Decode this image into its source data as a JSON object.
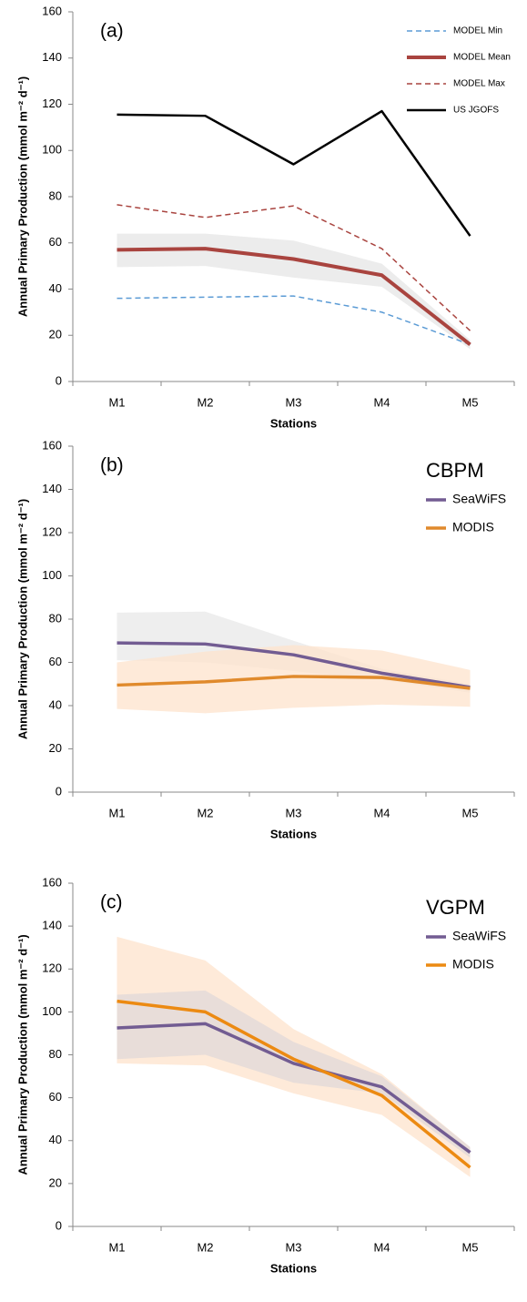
{
  "chart_data": [
    {
      "type": "line",
      "panel_label": "(a)",
      "y_label": "Annual Primary Production (mmol m⁻² d⁻¹)",
      "x_label": "Stations",
      "categories": [
        "M1",
        "M2",
        "M3",
        "M4",
        "M5"
      ],
      "ylim": [
        0,
        160
      ],
      "yticks": [
        0,
        20,
        40,
        60,
        80,
        100,
        120,
        140,
        160
      ],
      "bands": [
        {
          "color": "#e6e6e6",
          "upper": [
            64,
            64,
            61,
            51,
            18
          ],
          "lower": [
            49.5,
            50,
            45,
            41,
            14
          ]
        }
      ],
      "series": [
        {
          "name": "MODEL Min",
          "color": "#5b9bd5",
          "dashed": true,
          "linewidth": 1.5,
          "values": [
            36,
            36.5,
            37,
            30,
            16
          ]
        },
        {
          "name": "MODEL Mean",
          "color": "#a9443f",
          "dashed": false,
          "linewidth": 4,
          "values": [
            57,
            57.5,
            53,
            46,
            16
          ]
        },
        {
          "name": "MODEL Max",
          "color": "#a9443f",
          "dashed": true,
          "linewidth": 1.5,
          "values": [
            76.5,
            71,
            76,
            57.5,
            22
          ]
        },
        {
          "name": "US JGOFS",
          "color": "#000000",
          "dashed": false,
          "linewidth": 2.5,
          "values": [
            115.5,
            115,
            94,
            117,
            63
          ]
        }
      ]
    },
    {
      "type": "line",
      "panel_label": "(b)",
      "model": "CBPM",
      "y_label": "Annual Primary Production (mmol m⁻² d⁻¹)",
      "x_label": "Stations",
      "categories": [
        "M1",
        "M2",
        "M3",
        "M4",
        "M5"
      ],
      "ylim": [
        0,
        160
      ],
      "yticks": [
        0,
        20,
        40,
        60,
        80,
        100,
        120,
        140,
        160
      ],
      "bands": [
        {
          "color": "#e8e8e8",
          "upper": [
            83,
            83.5,
            70,
            57,
            50
          ],
          "lower": [
            61,
            60,
            56,
            52,
            46
          ]
        },
        {
          "color": "#fde3cc",
          "upper": [
            60,
            65,
            68,
            65.5,
            56.5
          ],
          "lower": [
            38.5,
            36.5,
            39,
            40.5,
            39.5
          ]
        }
      ],
      "series": [
        {
          "name": "SeaWiFS",
          "color": "#725c92",
          "dashed": false,
          "linewidth": 3.5,
          "values": [
            69,
            68.5,
            63.5,
            55,
            48.5
          ]
        },
        {
          "name": "MODIS",
          "color": "#e08a2c",
          "dashed": false,
          "linewidth": 3.5,
          "values": [
            49.5,
            51,
            53.5,
            53,
            48
          ]
        }
      ]
    },
    {
      "type": "line",
      "panel_label": "(c)",
      "model": "VGPM",
      "y_label": "Annual Primary Production (mmol m⁻² d⁻¹)",
      "x_label": "Stations",
      "categories": [
        "M1",
        "M2",
        "M3",
        "M4",
        "M5"
      ],
      "ylim": [
        0,
        160
      ],
      "yticks": [
        0,
        20,
        40,
        60,
        80,
        100,
        120,
        140,
        160
      ],
      "bands": [
        {
          "color": "#fde3cc",
          "upper": [
            135,
            124,
            92,
            71,
            37
          ],
          "lower": [
            76,
            75,
            62,
            52,
            23
          ]
        },
        {
          "color": "#e0d8d8",
          "upper": [
            108,
            110,
            86,
            70,
            37
          ],
          "lower": [
            78,
            80,
            67,
            62,
            32
          ]
        }
      ],
      "series": [
        {
          "name": "SeaWiFS",
          "color": "#725c92",
          "dashed": false,
          "linewidth": 3.5,
          "values": [
            92.5,
            94.5,
            76,
            65,
            34.5
          ]
        },
        {
          "name": "MODIS",
          "color": "#ec8a12",
          "dashed": false,
          "linewidth": 3.5,
          "values": [
            105,
            100,
            78,
            61,
            27.5
          ]
        }
      ]
    }
  ]
}
